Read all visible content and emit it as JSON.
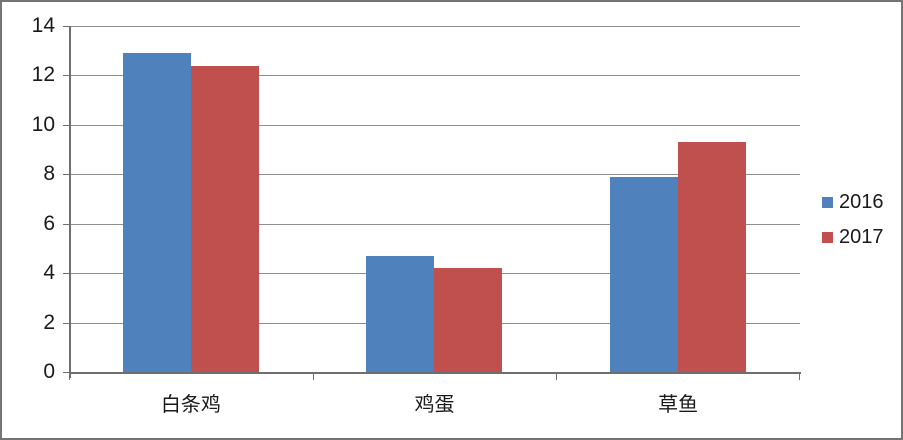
{
  "chart_data": {
    "type": "bar",
    "title": "",
    "xlabel": "",
    "ylabel": "",
    "categories": [
      "白条鸡",
      "鸡蛋",
      "草鱼"
    ],
    "series": [
      {
        "name": "2016",
        "color": "#4F81BD",
        "values": [
          12.9,
          4.7,
          7.9
        ]
      },
      {
        "name": "2017",
        "color": "#C0504D",
        "values": [
          12.4,
          4.2,
          9.3
        ]
      }
    ],
    "ylim": [
      0,
      14
    ],
    "yticks": [
      0,
      2,
      4,
      6,
      8,
      10,
      12,
      14
    ],
    "grid": true,
    "legend_position": "right",
    "legend": [
      "2016",
      "2017"
    ]
  },
  "colors": {
    "series_2016": "#4F81BD",
    "series_2017": "#C0504D",
    "gridline": "#8F8F8F",
    "axis": "#6E6E6E",
    "text": "#1A1A1A",
    "frame_border": "#747474",
    "background": "#FFFFFF"
  }
}
